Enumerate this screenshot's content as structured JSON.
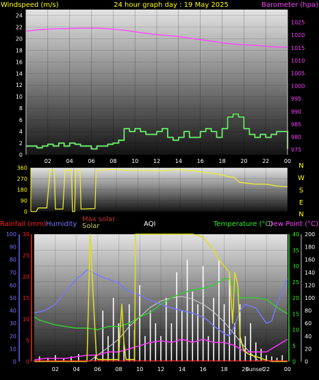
{
  "chart_data": [
    {
      "type": "line",
      "title": "24 hour graph day : 19 May 2025",
      "left_axis_label": "Windspeed (m/s)",
      "right_axis_label": "Barometer (hpa)",
      "x_ticks": [
        "02",
        "04",
        "06",
        "08",
        "10",
        "12",
        "14",
        "16",
        "18",
        "20",
        "22",
        "00"
      ],
      "left_ylim": [
        0,
        25
      ],
      "left_ticks": [
        0,
        2,
        4,
        6,
        8,
        10,
        12,
        14,
        16,
        18,
        20,
        22,
        24
      ],
      "right_ylim": [
        973,
        1030
      ],
      "right_ticks": [
        975,
        980,
        985,
        990,
        995,
        1000,
        1005,
        1010,
        1015,
        1020,
        1025
      ],
      "grid": true,
      "series": [
        {
          "name": "Barometer (hpa)",
          "axis": "right",
          "color": "#ff44ff",
          "x": [
            0,
            0.5,
            1,
            1.5,
            2,
            2.5,
            3,
            3.5,
            4,
            4.5,
            5,
            5.5,
            6,
            6.5,
            7,
            7.5,
            8,
            8.5,
            9,
            9.5,
            10,
            10.5,
            11,
            11.5,
            12,
            12.5,
            13,
            13.5,
            14,
            14.5,
            15,
            15.5,
            16,
            16.5,
            17,
            17.5,
            18,
            18.5,
            19,
            19.5,
            20,
            20.5,
            21,
            21.5,
            22,
            22.5,
            23,
            23.5,
            24
          ],
          "values": [
            1021.5,
            1021.8,
            1022.0,
            1022.2,
            1022.3,
            1022.4,
            1022.5,
            1022.5,
            1022.6,
            1022.6,
            1022.7,
            1022.7,
            1022.7,
            1022.7,
            1022.6,
            1022.5,
            1022.3,
            1022.1,
            1021.9,
            1021.6,
            1021.3,
            1021.0,
            1020.7,
            1020.4,
            1020.2,
            1020.0,
            1019.8,
            1019.6,
            1019.4,
            1019.1,
            1018.8,
            1018.5,
            1018.2,
            1017.9,
            1017.6,
            1017.3,
            1017.0,
            1016.7,
            1016.5,
            1016.3,
            1016.2,
            1016.1,
            1016.0,
            1015.8,
            1015.6,
            1015.4,
            1015.3,
            1015.3,
            1015.2
          ]
        },
        {
          "name": "Windspeed (m/s)",
          "axis": "left",
          "color": "#66ee66",
          "x": [
            0,
            1,
            1.5,
            2,
            2.5,
            3,
            3.5,
            4,
            4.5,
            5,
            5.5,
            6,
            6.5,
            7,
            7.5,
            8,
            8.5,
            9,
            9.5,
            10,
            10.5,
            11,
            11.5,
            12,
            12.5,
            13,
            13.5,
            14,
            14.5,
            15,
            15.5,
            16,
            16.5,
            17,
            17.5,
            18,
            18.5,
            19,
            19.5,
            20,
            20.5,
            21,
            21.5,
            22,
            22.5,
            23,
            23.5,
            24
          ],
          "values": [
            1.5,
            1.2,
            1.5,
            1.8,
            1.5,
            2.0,
            1.5,
            2.0,
            1.8,
            1.5,
            1.5,
            1.0,
            1.5,
            1.5,
            1.8,
            2.0,
            2.5,
            4.5,
            4.0,
            4.5,
            4.0,
            3.5,
            3.5,
            4.0,
            4.5,
            3.0,
            2.5,
            3.0,
            4.0,
            3.0,
            3.0,
            4.0,
            4.5,
            4.0,
            3.0,
            4.5,
            6.5,
            7.0,
            6.5,
            4.5,
            3.5,
            3.0,
            3.5,
            3.0,
            3.5,
            4.0,
            4.0,
            1.0
          ]
        }
      ]
    },
    {
      "type": "line",
      "title": "",
      "y_ticks": [
        0,
        90,
        180,
        270,
        360
      ],
      "ylim": [
        0,
        360
      ],
      "right_labels": [
        "N",
        "W",
        "S",
        "E",
        "N"
      ],
      "grid": true,
      "series": [
        {
          "name": "Wind direction",
          "color": "#eeee33",
          "points": [
            [
              0,
              0
            ],
            [
              0.5,
              0
            ],
            [
              0.7,
              30
            ],
            [
              1.5,
              30
            ],
            [
              1.8,
              340
            ],
            [
              2.2,
              340
            ],
            [
              2.3,
              20
            ],
            [
              3.0,
              20
            ],
            [
              3.2,
              340
            ],
            [
              3.8,
              340
            ],
            [
              3.9,
              0
            ],
            [
              4.1,
              0
            ],
            [
              4.2,
              340
            ],
            [
              4.6,
              340
            ],
            [
              4.7,
              20
            ],
            [
              6.0,
              25
            ],
            [
              6.1,
              335
            ],
            [
              7,
              345
            ],
            [
              8,
              345
            ],
            [
              9,
              340
            ],
            [
              10,
              340
            ],
            [
              11,
              338
            ],
            [
              12,
              335
            ],
            [
              13,
              340
            ],
            [
              14,
              345
            ],
            [
              15,
              335
            ],
            [
              16,
              325
            ],
            [
              17,
              315
            ],
            [
              18,
              300
            ],
            [
              18.5,
              285
            ],
            [
              19,
              280
            ],
            [
              19.5,
              240
            ],
            [
              20,
              235
            ],
            [
              21,
              225
            ],
            [
              22,
              225
            ],
            [
              23,
              210
            ],
            [
              24,
              205
            ]
          ]
        }
      ]
    },
    {
      "type": "line",
      "title": "",
      "labels": {
        "rainfall": "Rainfall (mm)",
        "humidity": "Humidity",
        "max_solar": "Max solar",
        "solar": "Solar",
        "aqi": "AQI",
        "temperature": "Temperature (°C)",
        "dewpoint": "Dew Point (°C)"
      },
      "x_ticks": [
        "02",
        "04",
        "06",
        "08",
        "10",
        "12",
        "14",
        "16",
        "18",
        "20",
        "22",
        "00"
      ],
      "x_tick_overlay": "Sunset",
      "humidity_ticks": [
        0,
        10,
        20,
        30,
        40,
        50,
        60,
        70,
        80,
        90,
        100
      ],
      "rain_ticks": [
        0,
        5,
        10,
        15,
        20,
        25,
        30
      ],
      "temp_ticks": [
        0,
        5,
        10,
        15,
        20,
        25,
        30,
        35,
        40
      ],
      "solar_ticks": [
        0,
        20,
        40,
        60,
        80,
        100,
        120,
        140,
        160,
        180,
        200
      ],
      "grid": true,
      "series": [
        {
          "name": "Humidity",
          "axis": "humidity",
          "color": "#7777ff",
          "x": [
            0,
            1,
            2,
            2.5,
            3,
            3.5,
            4,
            4.5,
            5,
            5.5,
            6,
            6.5,
            7,
            7.5,
            8,
            8.5,
            9,
            10,
            11,
            12,
            13,
            14,
            15,
            16,
            16.5,
            17,
            17.5,
            18,
            18.5,
            19,
            19.5,
            20,
            21,
            21.5,
            22,
            22.5,
            23,
            23.5,
            24
          ],
          "values": [
            38,
            40,
            45,
            50,
            55,
            60,
            65,
            68,
            72,
            70,
            68,
            66,
            65,
            63,
            62,
            58,
            55,
            52,
            48,
            45,
            42,
            40,
            38,
            35,
            32,
            28,
            25,
            22,
            20,
            28,
            40,
            45,
            42,
            36,
            30,
            32,
            45,
            55,
            65
          ]
        },
        {
          "name": "Temperature",
          "axis": "temp",
          "color": "#33cc33",
          "x": [
            0,
            0.5,
            1,
            2,
            3,
            4,
            5,
            6,
            7,
            8,
            9,
            10,
            11,
            12,
            13,
            14,
            15,
            16,
            17,
            18,
            18.5,
            19,
            19.5,
            20,
            21,
            22,
            23,
            24
          ],
          "values": [
            14,
            13,
            12.5,
            11.5,
            11,
            10.5,
            10.5,
            10,
            11,
            11,
            12,
            14,
            15.5,
            18,
            20,
            21.5,
            22.5,
            23,
            24,
            26,
            26,
            23,
            20,
            20,
            20,
            19.5,
            17,
            15
          ]
        },
        {
          "name": "Dew Point",
          "axis": "temp",
          "color": "#ff33ff",
          "x": [
            0,
            1,
            2,
            3,
            4,
            5,
            6,
            7,
            8,
            9,
            10,
            11,
            12,
            13,
            14,
            15,
            16,
            17,
            18,
            19,
            19.5,
            20,
            21,
            22,
            22.5,
            23,
            23.5,
            24
          ],
          "values": [
            0.5,
            1,
            1,
            1,
            1.5,
            2,
            2,
            3,
            3,
            4,
            5,
            6,
            6.5,
            6,
            7,
            6,
            7,
            6,
            6,
            5,
            4,
            3,
            3,
            3,
            4,
            5,
            6,
            7
          ]
        },
        {
          "name": "Max solar",
          "axis": "solar",
          "color": "#cccccc",
          "x": [
            5.2,
            6,
            7,
            8,
            9,
            10,
            11,
            12,
            13,
            14,
            15,
            16,
            17,
            18,
            19,
            20,
            21,
            21.3
          ],
          "values": [
            0,
            10,
            22,
            35,
            55,
            70,
            85,
            95,
            100,
            102,
            98,
            90,
            78,
            62,
            42,
            22,
            5,
            0
          ]
        },
        {
          "name": "Solar",
          "axis": "solar",
          "color": "#dddd22",
          "points": [
            [
              0,
              0
            ],
            [
              5,
              0
            ],
            [
              5.3,
              200
            ],
            [
              5.6,
              100
            ],
            [
              5.9,
              5
            ],
            [
              6.1,
              3
            ],
            [
              7,
              3
            ],
            [
              8,
              3
            ],
            [
              8.1,
              40
            ],
            [
              8.3,
              90
            ],
            [
              8.5,
              30
            ],
            [
              8.7,
              3
            ],
            [
              9.5,
              3
            ],
            [
              9.6,
              200
            ],
            [
              10,
              200
            ],
            [
              11,
              200
            ],
            [
              12,
              200
            ],
            [
              13,
              200
            ],
            [
              14,
              200
            ],
            [
              15,
              200
            ],
            [
              15.5,
              198
            ],
            [
              16,
              195
            ],
            [
              16.5,
              185
            ],
            [
              17,
              175
            ],
            [
              17.5,
              160
            ],
            [
              18,
              150
            ],
            [
              18.5,
              140
            ],
            [
              18.8,
              60
            ],
            [
              19,
              140
            ],
            [
              19.3,
              120
            ],
            [
              19.5,
              40
            ],
            [
              19.8,
              20
            ],
            [
              20,
              15
            ],
            [
              20.5,
              10
            ],
            [
              21,
              8
            ],
            [
              21.5,
              5
            ],
            [
              22,
              2
            ],
            [
              22.5,
              0
            ],
            [
              24,
              0
            ]
          ]
        },
        {
          "name": "AQI",
          "axis": "solar",
          "color": "#ffffff",
          "spikes_x": [
            0.5,
            1.3,
            2.0,
            2.8,
            3.5,
            4.2,
            5.0,
            5.8,
            6.5,
            7.0,
            7.5,
            8.0,
            8.5,
            9.0,
            9.5,
            10.0,
            10.5,
            11.0,
            11.5,
            12.0,
            12.5,
            13.0,
            13.5,
            14.0,
            14.5,
            15.0,
            15.5,
            16.0,
            16.5,
            17.0,
            17.5,
            18.0,
            18.5,
            19.0,
            19.5,
            20.0,
            20.5,
            21.0,
            21.5,
            22.0,
            22.5,
            23.0,
            23.5
          ],
          "spikes_values": [
            8,
            6,
            10,
            5,
            8,
            12,
            6,
            10,
            80,
            40,
            100,
            60,
            30,
            90,
            50,
            120,
            40,
            80,
            60,
            40,
            100,
            60,
            140,
            80,
            160,
            110,
            90,
            150,
            40,
            100,
            160,
            90,
            140,
            60,
            90,
            40,
            60,
            30,
            20,
            10,
            8,
            6,
            10
          ]
        },
        {
          "name": "Rainfall",
          "axis": "rain",
          "color": "#ff2222",
          "x": [
            0,
            24
          ],
          "values": [
            0,
            0
          ]
        }
      ]
    }
  ]
}
